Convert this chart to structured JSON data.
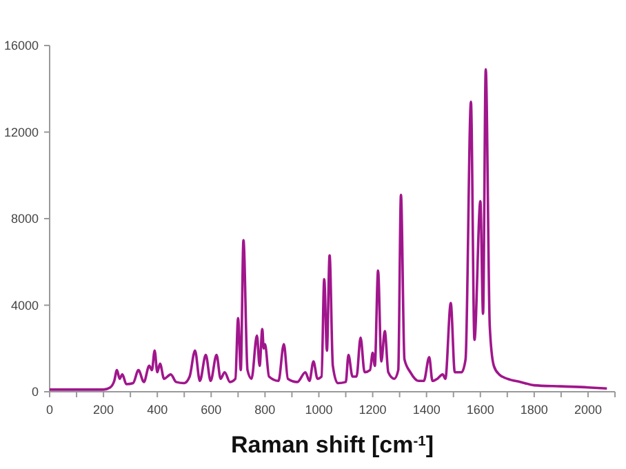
{
  "chart_data": {
    "type": "line",
    "xlabel": "Raman shift [cm$^{-1}$]",
    "xlim": [
      0,
      2100
    ],
    "ylim": [
      0,
      16000
    ],
    "xticks": [
      0,
      {
        "value": 100,
        "label": null
      },
      200,
      {
        "value": 300,
        "label": null
      },
      400,
      {
        "value": 500,
        "label": null
      },
      600,
      {
        "value": 700,
        "label": null
      },
      800,
      {
        "value": 900,
        "label": null
      },
      1000,
      {
        "value": 1100,
        "label": null
      },
      1200,
      {
        "value": 1300,
        "label": null
      },
      1400,
      {
        "value": 1500,
        "label": null
      },
      1600,
      {
        "value": 1700,
        "label": null
      },
      1800,
      {
        "value": 1900,
        "label": null
      },
      2000,
      {
        "value": 2100,
        "label": null
      }
    ],
    "yticks": [
      0,
      4000,
      8000,
      12000,
      16000
    ],
    "grid": false,
    "marker": "none",
    "line_style": "solid",
    "series": [
      {
        "color": "#a0168c",
        "x": [
          0,
          100,
          200,
          225,
          240,
          250,
          260,
          270,
          285,
          310,
          330,
          350,
          370,
          380,
          390,
          400,
          410,
          425,
          450,
          470,
          500,
          520,
          540,
          558,
          580,
          598,
          620,
          635,
          650,
          670,
          690,
          700,
          710,
          720,
          735,
          750,
          770,
          780,
          790,
          795,
          800,
          815,
          850,
          870,
          885,
          920,
          950,
          965,
          980,
          995,
          1010,
          1020,
          1030,
          1040,
          1052,
          1070,
          1100,
          1110,
          1125,
          1140,
          1155,
          1170,
          1190,
          1200,
          1208,
          1220,
          1232,
          1245,
          1258,
          1280,
          1295,
          1305,
          1318,
          1340,
          1370,
          1390,
          1410,
          1422,
          1440,
          1460,
          1470,
          1490,
          1505,
          1530,
          1545,
          1565,
          1578,
          1600,
          1610,
          1620,
          1635,
          1650,
          1670,
          1700,
          1750,
          1800,
          1900,
          2000,
          2070
        ],
        "values": [
          100,
          100,
          100,
          200,
          500,
          1000,
          600,
          800,
          350,
          400,
          1000,
          450,
          1200,
          1000,
          1900,
          900,
          1300,
          600,
          800,
          450,
          400,
          700,
          1900,
          500,
          1700,
          500,
          1700,
          600,
          900,
          450,
          600,
          3400,
          1000,
          7000,
          1000,
          600,
          2600,
          1200,
          2900,
          2000,
          2200,
          700,
          500,
          2200,
          600,
          450,
          900,
          500,
          1400,
          600,
          700,
          5200,
          1900,
          6300,
          1200,
          400,
          450,
          1700,
          700,
          700,
          2500,
          900,
          1000,
          1800,
          1200,
          5600,
          1400,
          2800,
          900,
          600,
          1000,
          9100,
          1500,
          900,
          500,
          500,
          1600,
          500,
          600,
          800,
          600,
          4100,
          900,
          900,
          1500,
          13400,
          2400,
          8800,
          3600,
          14900,
          3000,
          1200,
          800,
          600,
          450,
          300,
          250,
          200,
          150
        ]
      }
    ]
  }
}
